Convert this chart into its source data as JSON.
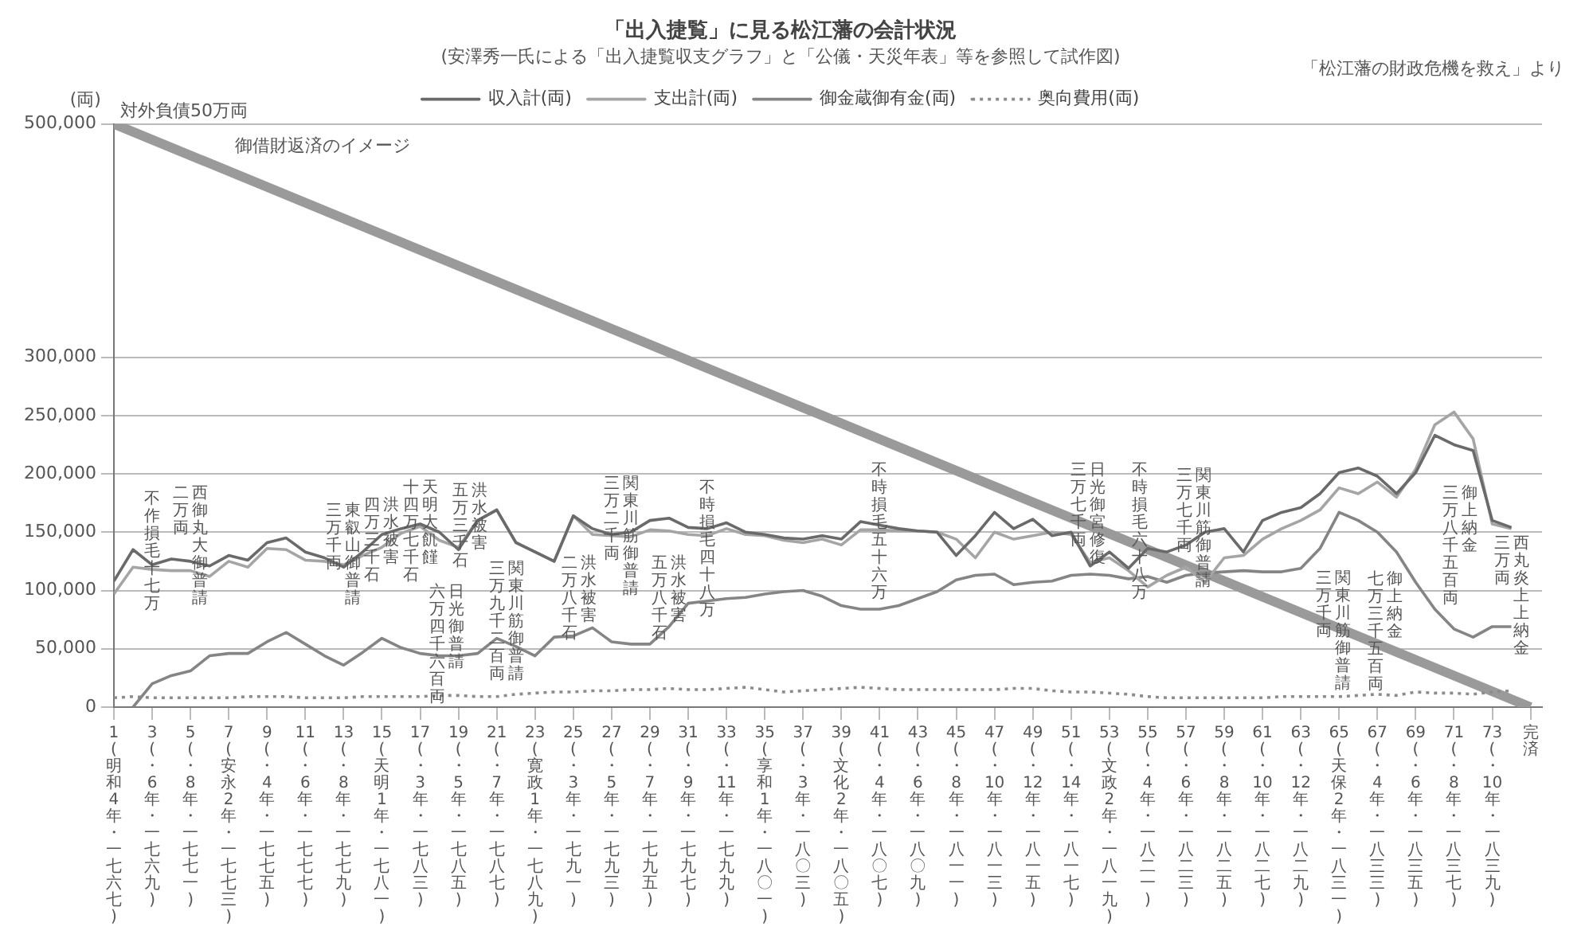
{
  "chart_data": {
    "type": "line",
    "title": "「出入捷覧」に見る松江藩の会計状況",
    "subtitle": "(安澤秀一氏による「出入捷覧収支グラフ」と「公儀・天災年表」等を参照して試作図)",
    "ylabel": "(両)",
    "categories": [
      "1(明和4年・一七六七)",
      null,
      "3(・6年・一七六九)",
      null,
      "5(・8年・一七七一)",
      null,
      "7(安永2年・一七七三)",
      null,
      "9(・4年・一七七五)",
      null,
      "11(・6年・一七七七)",
      null,
      "13(・8年・一七七九)",
      null,
      "15(天明1年・一七八一)",
      null,
      "17(・3年・一七八三)",
      null,
      "19(・5年・一七八五)",
      null,
      "21(・7年・一七八七)",
      null,
      "23(寛政1年・一七八九)",
      null,
      "25(・3年・一七九一)",
      null,
      "27(・5年・一七九三)",
      null,
      "29(・7年・一七九五)",
      null,
      "31(・9年・一七九七)",
      null,
      "33(・11年・一七九九)",
      null,
      "35(享和1年・一八〇一)",
      null,
      "37(・3年・一八〇三)",
      null,
      "39(文化2年・一八〇五)",
      null,
      "41(・4年・一八〇七)",
      null,
      "43(・6年・一八〇九)",
      null,
      "45(・8年・一八一一)",
      null,
      "47(・10年・一八一三)",
      null,
      "49(・12年・一八一五)",
      null,
      "51(・14年・一八一七)",
      null,
      "53(文政2年・一八一九)",
      null,
      "55(・4年・一八二一)",
      null,
      "57(・6年・一八二三)",
      null,
      "59(・8年・一八二五)",
      null,
      "61(・10年・一八二七)",
      null,
      "63(・12年・一八二九)",
      null,
      "65(天保2年・一八三一)",
      null,
      "67(・4年・一八三三)",
      null,
      "69(・6年・一八三五)",
      null,
      "71(・8年・一八三七)",
      null,
      "73(・10年・一八三九)",
      null,
      "完済"
    ],
    "series": [
      {
        "name": "収入計(両)",
        "color": "#6a6a6a",
        "values": [
          108000,
          135000,
          122000,
          127000,
          125000,
          121000,
          130000,
          126000,
          141000,
          145000,
          133000,
          128000,
          120000,
          133000,
          148000,
          153000,
          157000,
          150000,
          135000,
          160000,
          169000,
          141000,
          133000,
          125000,
          164000,
          153000,
          148000,
          150000,
          160000,
          162000,
          154000,
          153000,
          158000,
          150000,
          148000,
          145000,
          144000,
          147000,
          144000,
          159000,
          156000,
          153000,
          151000,
          150000,
          130000,
          147000,
          167000,
          153000,
          161000,
          147000,
          150000,
          121000,
          133000,
          119000,
          136000,
          133000,
          139000,
          150000,
          153000,
          133000,
          160000,
          167000,
          171000,
          183000,
          201000,
          205000,
          198000,
          183000,
          201000,
          233000,
          225000,
          220000,
          160000,
          154000,
          null
        ]
      },
      {
        "name": "支出計(両)",
        "color": "#a5a5a5",
        "values": [
          97000,
          120000,
          118000,
          117000,
          117000,
          112000,
          125000,
          120000,
          136000,
          135000,
          126000,
          125000,
          122000,
          130000,
          137000,
          149000,
          155000,
          143000,
          137000,
          160000,
          169000,
          141000,
          133000,
          125000,
          164000,
          148000,
          147000,
          146000,
          152000,
          151000,
          148000,
          147000,
          153000,
          148000,
          147000,
          143000,
          141000,
          144000,
          139000,
          152000,
          152000,
          151000,
          151000,
          150000,
          144000,
          128000,
          150000,
          144000,
          147000,
          150000,
          148000,
          124000,
          128000,
          117000,
          103000,
          113000,
          120000,
          107000,
          128000,
          130000,
          144000,
          153000,
          160000,
          169000,
          188000,
          183000,
          193000,
          180000,
          204000,
          242000,
          253000,
          230000,
          157000,
          153000,
          null
        ]
      },
      {
        "name": "御金蔵御有金(両)",
        "color": "#858585",
        "values": [
          null,
          0,
          20000,
          27000,
          31000,
          44000,
          46000,
          46000,
          56000,
          64000,
          54000,
          44000,
          36000,
          47000,
          59000,
          51000,
          46000,
          44000,
          44000,
          46000,
          59000,
          52000,
          44000,
          60000,
          61000,
          68000,
          56000,
          54000,
          54000,
          69000,
          89000,
          91000,
          93000,
          94000,
          97000,
          99000,
          100000,
          95000,
          87000,
          84000,
          84000,
          87000,
          93000,
          99000,
          109000,
          113000,
          114000,
          105000,
          107000,
          108000,
          113000,
          114000,
          113000,
          110000,
          112000,
          107000,
          113000,
          115000,
          116000,
          117000,
          116000,
          116000,
          119000,
          136000,
          167000,
          160000,
          150000,
          133000,
          107000,
          84000,
          67000,
          60000,
          69000,
          69000,
          null
        ]
      },
      {
        "name": "奥向費用(両)",
        "color": "#8c8c8c",
        "line_style": "dotted",
        "values": [
          8000,
          9000,
          8000,
          8000,
          8000,
          8000,
          8000,
          9000,
          9000,
          9000,
          8000,
          8000,
          8000,
          9000,
          9000,
          9000,
          9000,
          10000,
          10000,
          9000,
          9000,
          11000,
          12000,
          13000,
          13000,
          14000,
          14000,
          15000,
          15000,
          16000,
          15000,
          15000,
          16000,
          17000,
          15000,
          13000,
          14000,
          15000,
          16000,
          17000,
          16000,
          15000,
          15000,
          15000,
          15000,
          15000,
          15000,
          16000,
          16000,
          14000,
          13000,
          13000,
          12000,
          11000,
          9000,
          8000,
          8000,
          8000,
          8000,
          8000,
          8000,
          9000,
          9000,
          9000,
          9000,
          10000,
          11000,
          10000,
          13000,
          12000,
          12000,
          11000,
          13000,
          14000,
          null
        ]
      },
      {
        "color": "#9a9a9a",
        "x": [
          "1(明和4年・一七六七)",
          "完済"
        ],
        "values": [
          500000,
          0
        ]
      }
    ],
    "ylim": [
      0,
      500000
    ],
    "yticks": [
      {
        "value": 0,
        "label": "0"
      },
      {
        "value": 50000,
        "label": "50,000"
      },
      {
        "value": 100000,
        "label": "100,000"
      },
      {
        "value": 150000,
        "label": "150,000"
      },
      {
        "value": 200000,
        "label": "200,000"
      },
      {
        "value": 250000,
        "label": "250,000"
      },
      {
        "value": 300000,
        "label": "300,000"
      },
      {
        "value": 500000,
        "label": "500,000"
      }
    ],
    "grid": "y",
    "legend": "top",
    "marker": "none",
    "annotations": [
      "「松江藩の財政危機を救え」より",
      {
        "text": "対外負債50万両",
        "x": "1(明和4年・一七六七)",
        "y": 500000
      },
      {
        "text": "御借財返済のイメージ",
        "x": "7(安永2年・一七七三)",
        "y": 470000
      },
      "不作損毛十七万",
      "西御丸大御普請",
      "二万両",
      "東叡山御普請",
      "三万千両",
      "洪水被害",
      "四万三千石",
      "天明大飢饉",
      "十四万七千石",
      "洪水被害",
      "五万三千石",
      "関東川筋御普請",
      "三万二千両",
      "不時損毛四十八万",
      "日光御普請",
      "六万四千六百両",
      "関東川筋御普請",
      "三万九千二百両",
      "洪水被害",
      "二万八千石",
      "洪水被害",
      "五万八千石",
      "不時損毛五十六万",
      "日光御宮修復",
      "三万七千両",
      "不時損毛六十八万",
      "関東川筋御普請",
      "三万七千両",
      "御上納金",
      "三万八千五百両",
      "関東川筋御普請",
      "三万千両",
      "御上納金",
      "七万三千五百両",
      "西丸炎上上納金",
      "三万両"
    ]
  }
}
